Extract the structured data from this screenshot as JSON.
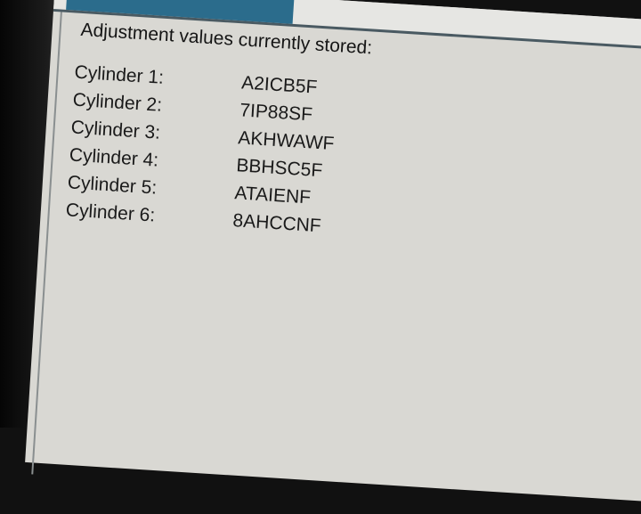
{
  "heading": "Adjustment values currently stored:",
  "cylinders": [
    {
      "label": "Cylinder 1:",
      "value": "A2ICB5F"
    },
    {
      "label": "Cylinder 2:",
      "value": "7IP88SF"
    },
    {
      "label": "Cylinder 3:",
      "value": "AKHWAWF"
    },
    {
      "label": "Cylinder 4:",
      "value": "BBHSC5F"
    },
    {
      "label": "Cylinder 5:",
      "value": "ATAIENF"
    },
    {
      "label": "Cylinder 6:",
      "value": "8AHCCNF"
    }
  ],
  "colors": {
    "tab": "#2b6c8c",
    "background": "#d9d8d3"
  }
}
